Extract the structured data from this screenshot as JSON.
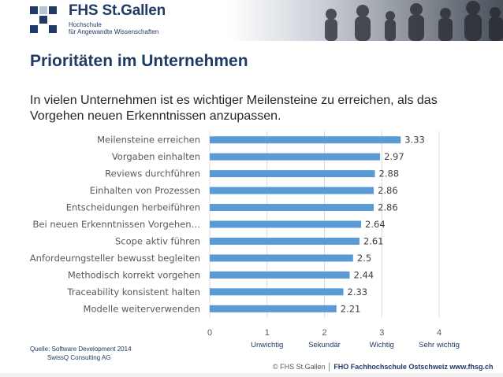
{
  "header": {
    "logo_name": "FHS St.Gallen",
    "logo_sub1": "Hochschule",
    "logo_sub2": "für Angewandte Wissenschaften"
  },
  "slide": {
    "title": "Prioritäten im Unternehmen",
    "subtitle": "In vielen Unternehmen ist es wichtiger Meilensteine zu erreichen, als das Vorgehen neuen Erkenntnissen anzupassen."
  },
  "chart_data": {
    "type": "bar",
    "orientation": "horizontal",
    "categories": [
      "Meilensteine erreichen",
      "Vorgaben einhalten",
      "Reviews durchführen",
      "Einhalten von Prozessen",
      "Entscheidungen herbeiführen",
      "Bei neuen Erkenntnissen Vorgehen…",
      "Scope aktiv führen",
      "Anfordeurngsteller bewusst begleiten",
      "Methodisch korrekt vorgehen",
      "Traceability konsistent halten",
      "Modelle weiterverwenden"
    ],
    "values": [
      3.33,
      2.97,
      2.88,
      2.86,
      2.86,
      2.64,
      2.61,
      2.5,
      2.44,
      2.33,
      2.21
    ],
    "value_labels": [
      "3.33",
      "2.97",
      "2.88",
      "2.86",
      "2.86",
      "2.64",
      "2.61",
      "2.5",
      "2.44",
      "2.33",
      "2.21"
    ],
    "xlim": [
      0,
      4
    ],
    "xticks": [
      "0",
      "1",
      "2",
      "3",
      "4"
    ],
    "scale_labels": [
      "Unwichtig",
      "Sekundär",
      "Wichtig",
      "Sehr wichtig"
    ],
    "grid": "vertical",
    "bar_color": "#5b9bd5",
    "grid_color": "#d9d9d9"
  },
  "footer": {
    "source": "Quelle: Software Development 2014",
    "org": "SwissQ Consulting AG",
    "copyright": "© FHS St.Gallen",
    "school": "FHO Fachhochschule Ostschweiz",
    "url": "www.fhsg.ch"
  },
  "colors": {
    "brand_navy": "#1f3a64",
    "logo_square_light": "#b7c3d6"
  }
}
